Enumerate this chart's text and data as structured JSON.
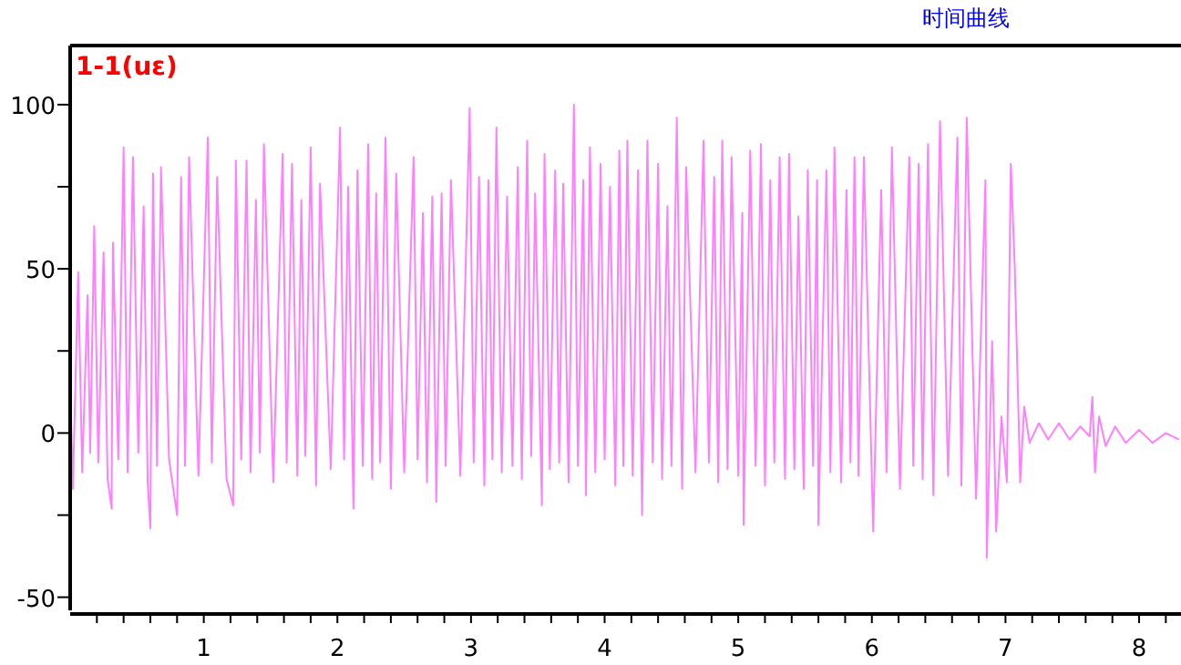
{
  "chart_data": {
    "type": "line",
    "title": "时间曲线",
    "ylabel": "1-1(uε)",
    "x": [
      0,
      0.02,
      0.06,
      0.09,
      0.13,
      0.15,
      0.18,
      0.21,
      0.25,
      0.28,
      0.31,
      0.32,
      0.36,
      0.4,
      0.43,
      0.47,
      0.51,
      0.55,
      0.58,
      0.6,
      0.62,
      0.65,
      0.68,
      0.74,
      0.8,
      0.83,
      0.86,
      0.89,
      0.96,
      1.03,
      1.06,
      1.1,
      1.17,
      1.22,
      1.24,
      1.28,
      1.32,
      1.35,
      1.39,
      1.42,
      1.45,
      1.52,
      1.59,
      1.62,
      1.66,
      1.7,
      1.73,
      1.76,
      1.8,
      1.84,
      1.87,
      1.95,
      2.02,
      2.05,
      2.08,
      2.12,
      2.15,
      2.19,
      2.23,
      2.26,
      2.29,
      2.32,
      2.36,
      2.4,
      2.44,
      2.5,
      2.57,
      2.6,
      2.64,
      2.67,
      2.71,
      2.74,
      2.78,
      2.81,
      2.85,
      2.92,
      2.99,
      3.02,
      3.06,
      3.1,
      3.13,
      3.16,
      3.19,
      3.23,
      3.27,
      3.31,
      3.35,
      3.38,
      3.42,
      3.45,
      3.48,
      3.53,
      3.55,
      3.59,
      3.63,
      3.66,
      3.69,
      3.73,
      3.77,
      3.8,
      3.84,
      3.86,
      3.89,
      3.93,
      3.97,
      4.0,
      4.04,
      4.08,
      4.11,
      4.14,
      4.17,
      4.21,
      4.25,
      4.28,
      4.32,
      4.36,
      4.4,
      4.43,
      4.47,
      4.5,
      4.54,
      4.58,
      4.61,
      4.68,
      4.74,
      4.78,
      4.82,
      4.85,
      4.88,
      4.92,
      4.95,
      5.0,
      5.03,
      5.04,
      5.09,
      5.13,
      5.17,
      5.2,
      5.24,
      5.27,
      5.31,
      5.35,
      5.38,
      5.42,
      5.45,
      5.49,
      5.52,
      5.56,
      5.59,
      5.6,
      5.66,
      5.69,
      5.72,
      5.77,
      5.81,
      5.84,
      5.87,
      5.9,
      5.94,
      6.01,
      6.07,
      6.11,
      6.15,
      6.21,
      6.28,
      6.31,
      6.35,
      6.38,
      6.42,
      6.46,
      6.51,
      6.57,
      6.64,
      6.67,
      6.71,
      6.78,
      6.85,
      6.86,
      6.9,
      6.93,
      6.97,
      7.01,
      7.04,
      7.07,
      7.11,
      7.14,
      7.18,
      7.25,
      7.32,
      7.4,
      7.48,
      7.56,
      7.63,
      7.65,
      7.67,
      7.7,
      7.75,
      7.82,
      7.9,
      8.0,
      8.1,
      8.2,
      8.3
    ],
    "series": [
      {
        "color": "#ff80ff",
        "values": [
          15,
          -17,
          49,
          -12,
          42,
          -6,
          63,
          -9,
          55,
          -14,
          -23,
          58,
          -8,
          87,
          -12,
          84,
          -6,
          69,
          -15,
          -29,
          79,
          -10,
          81,
          -8,
          -25,
          78,
          -10,
          84,
          -13,
          90,
          -9,
          78,
          -14,
          -22,
          83,
          -8,
          83,
          -12,
          71,
          -6,
          88,
          -15,
          85,
          -9,
          82,
          -13,
          71,
          -7,
          87,
          -16,
          76,
          -11,
          93,
          -8,
          75,
          -23,
          80,
          -10,
          88,
          -14,
          73,
          -9,
          90,
          -17,
          79,
          -12,
          84,
          -8,
          67,
          -15,
          72,
          -21,
          73,
          -10,
          77,
          -13,
          99,
          -9,
          78,
          -16,
          77,
          -8,
          93,
          -12,
          72,
          -10,
          81,
          -14,
          89,
          -7,
          73,
          -22,
          85,
          -11,
          80,
          -9,
          76,
          -15,
          100,
          -10,
          77,
          -19,
          87,
          -12,
          82,
          -8,
          75,
          -16,
          86,
          -10,
          89,
          -13,
          80,
          -25,
          89,
          -9,
          82,
          -14,
          69,
          -10,
          96,
          -17,
          81,
          -12,
          89,
          -9,
          78,
          -15,
          89,
          -11,
          84,
          -13,
          67,
          -28,
          86,
          -10,
          88,
          -16,
          77,
          -9,
          84,
          -14,
          85,
          -11,
          66,
          -17,
          80,
          -10,
          77,
          -28,
          80,
          -12,
          87,
          -15,
          74,
          -9,
          84,
          -13,
          84,
          -30,
          74,
          -12,
          87,
          -17,
          84,
          -10,
          82,
          -14,
          88,
          -19,
          95,
          -13,
          90,
          -16,
          96,
          -20,
          77,
          -38,
          28,
          -30,
          5,
          -15,
          82,
          50,
          -15,
          8,
          -3,
          3,
          -2,
          3,
          -2,
          2,
          -1,
          11,
          -12,
          5,
          -4,
          2,
          -3,
          1,
          -3,
          0,
          -2
        ]
      }
    ],
    "xlim": [
      0,
      8.3
    ],
    "ylim": [
      -54,
      118
    ],
    "xticks": [
      {
        "value": 0.2,
        "label": null
      },
      {
        "value": 0.4,
        "label": null
      },
      {
        "value": 0.6,
        "label": null
      },
      {
        "value": 0.8,
        "label": null
      },
      1,
      {
        "value": 1.2,
        "label": null
      },
      {
        "value": 1.4,
        "label": null
      },
      {
        "value": 1.6,
        "label": null
      },
      {
        "value": 1.8,
        "label": null
      },
      2,
      {
        "value": 2.2,
        "label": null
      },
      {
        "value": 2.4,
        "label": null
      },
      {
        "value": 2.6,
        "label": null
      },
      {
        "value": 2.8,
        "label": null
      },
      3,
      {
        "value": 3.2,
        "label": null
      },
      {
        "value": 3.4,
        "label": null
      },
      {
        "value": 3.6,
        "label": null
      },
      {
        "value": 3.8,
        "label": null
      },
      4,
      {
        "value": 4.2,
        "label": null
      },
      {
        "value": 4.4,
        "label": null
      },
      {
        "value": 4.6,
        "label": null
      },
      {
        "value": 4.8,
        "label": null
      },
      5,
      {
        "value": 5.2,
        "label": null
      },
      {
        "value": 5.4,
        "label": null
      },
      {
        "value": 5.6,
        "label": null
      },
      {
        "value": 5.8,
        "label": null
      },
      6,
      {
        "value": 6.2,
        "label": null
      },
      {
        "value": 6.4,
        "label": null
      },
      {
        "value": 6.6,
        "label": null
      },
      {
        "value": 6.8,
        "label": null
      },
      7,
      {
        "value": 7.2,
        "label": null
      },
      {
        "value": 7.4,
        "label": null
      },
      {
        "value": 7.6,
        "label": null
      },
      {
        "value": 7.8,
        "label": null
      },
      8,
      {
        "value": 8.2,
        "label": null
      }
    ],
    "yticks": [
      -50,
      {
        "value": -25,
        "label": null
      },
      0,
      {
        "value": 25,
        "label": null
      },
      50,
      {
        "value": 75,
        "label": null
      },
      100
    ]
  }
}
